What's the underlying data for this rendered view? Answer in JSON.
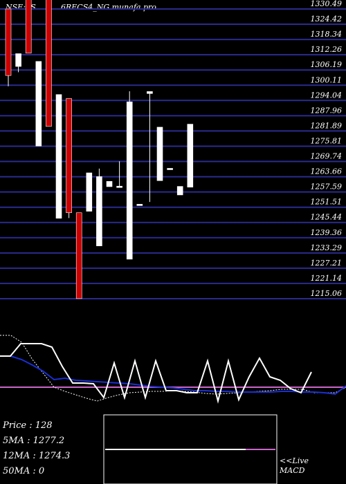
{
  "header": {
    "ticker": "NSE:SS",
    "title": "6RECS4_NG munafa.pro"
  },
  "stats": {
    "price_label": "Price",
    "price": "128",
    "ma5_label": "5MA",
    "ma5": "1277.2",
    "ma12_label": "12MA",
    "ma12": "1274.3",
    "ma50_label": "50MA",
    "ma50": "0"
  },
  "live_label": "<<Live",
  "macd_label": "MACD",
  "colors": {
    "bg": "#000000",
    "grid": "#2b2b8f",
    "up": "#ffffff",
    "down": "#cc0000",
    "ma_blue": "#1a2fd6",
    "macd": "#cc66cc"
  },
  "chart_data": {
    "type": "candlestick",
    "y_ticks": [
      "1330.49",
      "1324.42",
      "1318.34",
      "1312.26",
      "1306.19",
      "1300.11",
      "1294.04",
      "1287.96",
      "1281.89",
      "1275.81",
      "1269.74",
      "1263.66",
      "1257.59",
      "1251.51",
      "1245.44",
      "1239.36",
      "1233.29",
      "1227.21",
      "1221.14",
      "1215.06"
    ],
    "ylim": [
      1215.06,
      1330.49
    ],
    "candles": [
      {
        "o": 1330.5,
        "h": 1330.5,
        "l": 1299.7,
        "c": 1304.0,
        "dir": "down"
      },
      {
        "o": 1312.7,
        "h": 1312.7,
        "l": 1305.3,
        "c": 1307.6,
        "dir": "up"
      },
      {
        "o": 1340.0,
        "h": 1340.0,
        "l": 1312.9,
        "c": 1312.9,
        "dir": "down"
      },
      {
        "o": 1309.6,
        "h": 1309.6,
        "l": 1275.9,
        "c": 1275.9,
        "dir": "up"
      },
      {
        "o": 1340.0,
        "h": 1340.0,
        "l": 1283.7,
        "c": 1283.7,
        "dir": "down"
      },
      {
        "o": 1296.4,
        "h": 1296.4,
        "l": 1247.1,
        "c": 1247.1,
        "dir": "up"
      },
      {
        "o": 1294.8,
        "h": 1294.8,
        "l": 1247.2,
        "c": 1249.3,
        "dir": "down"
      },
      {
        "o": 1249.3,
        "h": 1249.3,
        "l": 1215.1,
        "c": 1215.1,
        "dir": "down"
      },
      {
        "o": 1265.2,
        "h": 1265.2,
        "l": 1249.9,
        "c": 1249.9,
        "dir": "up"
      },
      {
        "o": 1263.7,
        "h": 1266.9,
        "l": 1236.1,
        "c": 1236.1,
        "dir": "up"
      },
      {
        "o": 1261.8,
        "h": 1261.8,
        "l": 1259.7,
        "c": 1259.7,
        "dir": "up"
      },
      {
        "o": 1259.9,
        "h": 1269.8,
        "l": 1259.8,
        "c": 1259.9,
        "dir": "up"
      },
      {
        "o": 1293.5,
        "h": 1297.7,
        "l": 1230.8,
        "c": 1230.8,
        "dir": "up"
      },
      {
        "o": 1252.7,
        "h": 1252.7,
        "l": 1252.7,
        "c": 1252.7,
        "dir": "up"
      },
      {
        "o": 1297.6,
        "h": 1297.6,
        "l": 1253.6,
        "c": 1296.8,
        "dir": "up"
      },
      {
        "o": 1283.4,
        "h": 1283.4,
        "l": 1262.1,
        "c": 1262.1,
        "dir": "up"
      },
      {
        "o": 1267.0,
        "h": 1267.0,
        "l": 1267.0,
        "c": 1267.0,
        "dir": "up"
      },
      {
        "o": 1259.8,
        "h": 1259.8,
        "l": 1256.4,
        "c": 1256.4,
        "dir": "up"
      },
      {
        "o": 1284.6,
        "h": 1284.6,
        "l": 1259.5,
        "c": 1259.5,
        "dir": "up"
      }
    ]
  },
  "lower_data": {
    "white_line": [
      515,
      515,
      497,
      497,
      497,
      502,
      530,
      554,
      554,
      555,
      575,
      525,
      575,
      522,
      575,
      522,
      565,
      565,
      568,
      568,
      522,
      580,
      522,
      578,
      545,
      518,
      545,
      550,
      562,
      568,
      538
    ],
    "blue_line": [
      515,
      515,
      520,
      528,
      537,
      549,
      547,
      550,
      551,
      552,
      553,
      554,
      555,
      557,
      559,
      560,
      561,
      563,
      565,
      565,
      566,
      566,
      567,
      567,
      567,
      567,
      566,
      566,
      567,
      567,
      568,
      570,
      558
    ],
    "dotted_line": [
      485,
      485,
      495,
      520,
      540,
      560,
      566,
      571,
      576,
      580,
      575,
      571,
      568,
      567,
      566,
      566,
      565,
      566,
      567,
      569,
      570,
      569,
      568,
      567,
      566,
      565,
      563,
      563,
      563,
      568,
      568,
      568,
      560
    ]
  }
}
